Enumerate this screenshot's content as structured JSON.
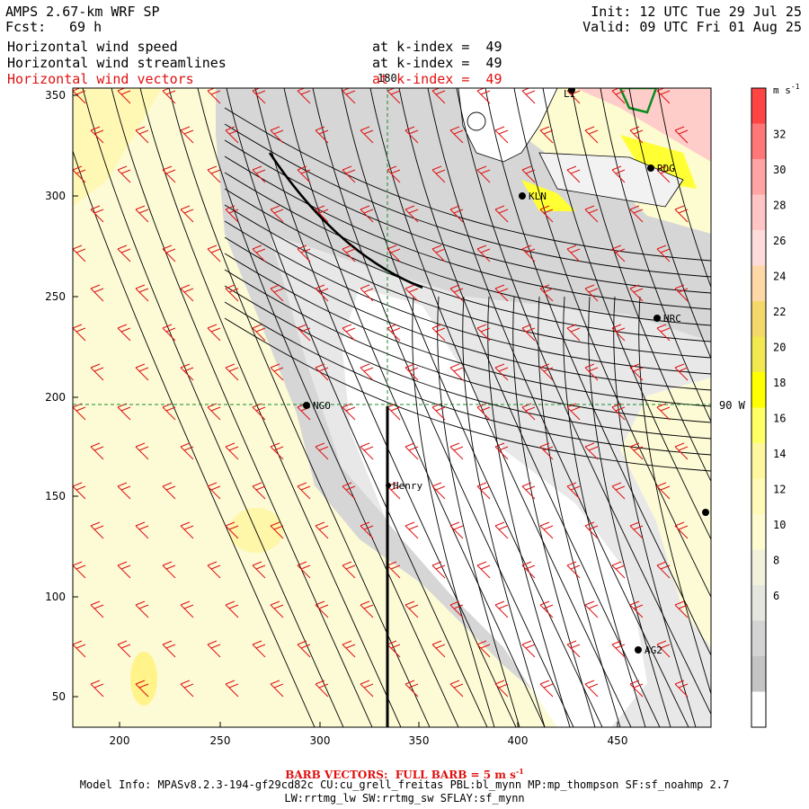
{
  "header": {
    "model": "AMPS 2.67-km WRF SP",
    "fcst_label": "Fcst:",
    "fcst_value": "69 h",
    "init": "Init: 12 UTC Tue 29 Jul 25",
    "valid": "Valid: 09 UTC Fri 01 Aug 25",
    "fields": [
      {
        "name": "Horizontal wind speed",
        "level": "at k-index =  49",
        "color": "#000000"
      },
      {
        "name": "Horizontal wind streamlines",
        "level": "at k-index =  49",
        "color": "#000000"
      },
      {
        "name": "Horizontal wind vectors",
        "level": "at k-index =  49",
        "color": "#e01010"
      }
    ]
  },
  "map": {
    "x_ticks": [
      "200",
      "250",
      "300",
      "350",
      "400",
      "450"
    ],
    "y_ticks": [
      "350",
      "300",
      "250",
      "200",
      "150",
      "100",
      "50"
    ],
    "meridian_label": "180",
    "parallel_label": "90 W",
    "stations": [
      {
        "id": "LI",
        "label": "LI"
      },
      {
        "id": "RDG",
        "label": "RDG"
      },
      {
        "id": "KLN",
        "label": "KLN"
      },
      {
        "id": "HRC",
        "label": "HRC"
      },
      {
        "id": "NGO",
        "label": "NGO"
      },
      {
        "id": "Henry",
        "label": "Henry"
      },
      {
        "id": "AG2",
        "label": "AG2"
      },
      {
        "id": "east",
        "label": ""
      }
    ]
  },
  "colorbar": {
    "unit": "m s",
    "unit_sup": "-1",
    "labels": [
      "32",
      "30",
      "28",
      "26",
      "24",
      "22",
      "20",
      "18",
      "16",
      "14",
      "12",
      "10",
      "8",
      "6"
    ],
    "colors": [
      "#ff4444",
      "#ff7777",
      "#ffa3a3",
      "#ffc4c4",
      "#ffdcdc",
      "#ffd8a8",
      "#f5d86a",
      "#f2e850",
      "#ffff00",
      "#ffff66",
      "#fff7a0",
      "#fffab8",
      "#fdfbcf",
      "#f2f1dc",
      "#e6e6e0",
      "#d4d4d4",
      "#c4c4c4",
      "#ffffff"
    ]
  },
  "footer": {
    "barb_note": "BARB VECTORS:  FULL BARB = 5 m s",
    "barb_sup": "-1",
    "model_info_1": "Model Info: MPASv8.2.3-194-gf29cd82c CU:cu_grell_freitas PBL:bl_mynn MP:mp_thompson SF:sf_noahmp 2.7",
    "model_info_2": "LW:rrtmg_lw SW:rrtmg_sw SFLAY:sf_mynn"
  }
}
